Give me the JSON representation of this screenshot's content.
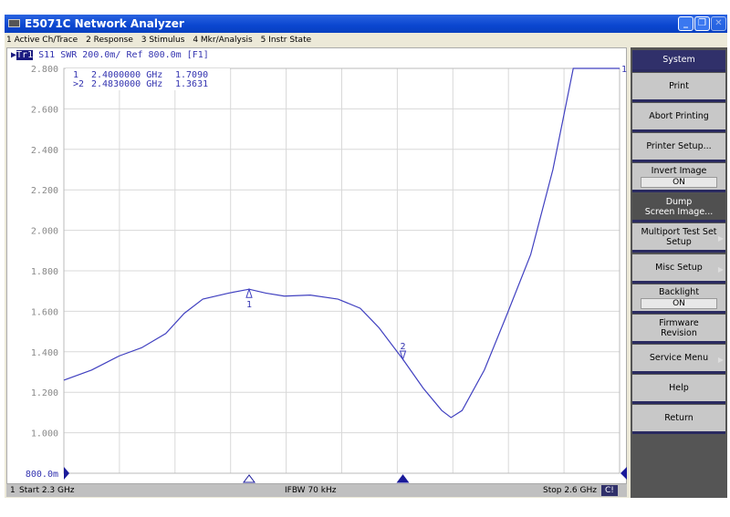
{
  "window": {
    "title": "E5071C Network Analyzer",
    "minimize": "_",
    "restore": "❐",
    "close": "✕"
  },
  "menu": [
    "1 Active Ch/Trace",
    "2 Response",
    "3 Stimulus",
    "4 Mkr/Analysis",
    "5 Instr State"
  ],
  "trace_header": {
    "trace": "Tr1",
    "text": "S11  SWR 200.0m/ Ref 800.0m [F1]"
  },
  "markers": [
    {
      "label": "1",
      "freq": "2.4000000 GHz",
      "value": "1.7090"
    },
    {
      "label": ">2",
      "freq": "2.4830000 GHz",
      "value": "1.3631"
    }
  ],
  "status": {
    "channel": "1",
    "start": "Start 2.3 GHz",
    "ifbw": "IFBW 70 kHz",
    "stop": "Stop 2.6 GHz",
    "cal": "C!"
  },
  "softkeys": [
    {
      "label": "System",
      "style": "title"
    },
    {
      "label": "Print"
    },
    {
      "label": "Abort Printing"
    },
    {
      "label": "Printer Setup..."
    },
    {
      "label": "Invert Image",
      "value": "ON"
    },
    {
      "label": "Dump",
      "label2": "Screen Image...",
      "style": "dark"
    },
    {
      "label": "Multiport Test Set",
      "label2": "Setup",
      "submenu": true
    },
    {
      "label": "Misc Setup",
      "submenu": true
    },
    {
      "label": "Backlight",
      "value": "ON"
    },
    {
      "label": "Firmware",
      "label2": "Revision"
    },
    {
      "label": "Service Menu",
      "submenu": true
    },
    {
      "label": "Help"
    },
    {
      "label": "Return"
    }
  ],
  "colors": {
    "trace": "#4040c0",
    "grid": "#d8d8d8",
    "title": "#0a46d0"
  },
  "chart_data": {
    "type": "line",
    "xlim": [
      2.3,
      2.6
    ],
    "xunit": "GHz",
    "ylim": [
      0.8,
      2.8
    ],
    "yticks": [
      "2.800",
      "2.600",
      "2.400",
      "2.200",
      "2.000",
      "1.800",
      "1.600",
      "1.400",
      "1.200",
      "1.000",
      "800.0m"
    ],
    "grid": true,
    "x": [
      2.3,
      2.315,
      2.33,
      2.342,
      2.355,
      2.365,
      2.375,
      2.389,
      2.4,
      2.409,
      2.419,
      2.433,
      2.448,
      2.46,
      2.47,
      2.483,
      2.494,
      2.504,
      2.509,
      2.515,
      2.527,
      2.539,
      2.552,
      2.564,
      2.575,
      2.6
    ],
    "y": [
      1.26,
      1.31,
      1.38,
      1.42,
      1.49,
      1.59,
      1.66,
      1.69,
      1.709,
      1.69,
      1.675,
      1.68,
      1.66,
      1.615,
      1.52,
      1.3631,
      1.22,
      1.11,
      1.075,
      1.11,
      1.31,
      1.58,
      1.88,
      2.3,
      2.8,
      2.8
    ],
    "marker_points": [
      {
        "label": "1",
        "x": 2.4,
        "y": 1.709
      },
      {
        "label": "2",
        "x": 2.483,
        "y": 1.3631
      }
    ]
  }
}
